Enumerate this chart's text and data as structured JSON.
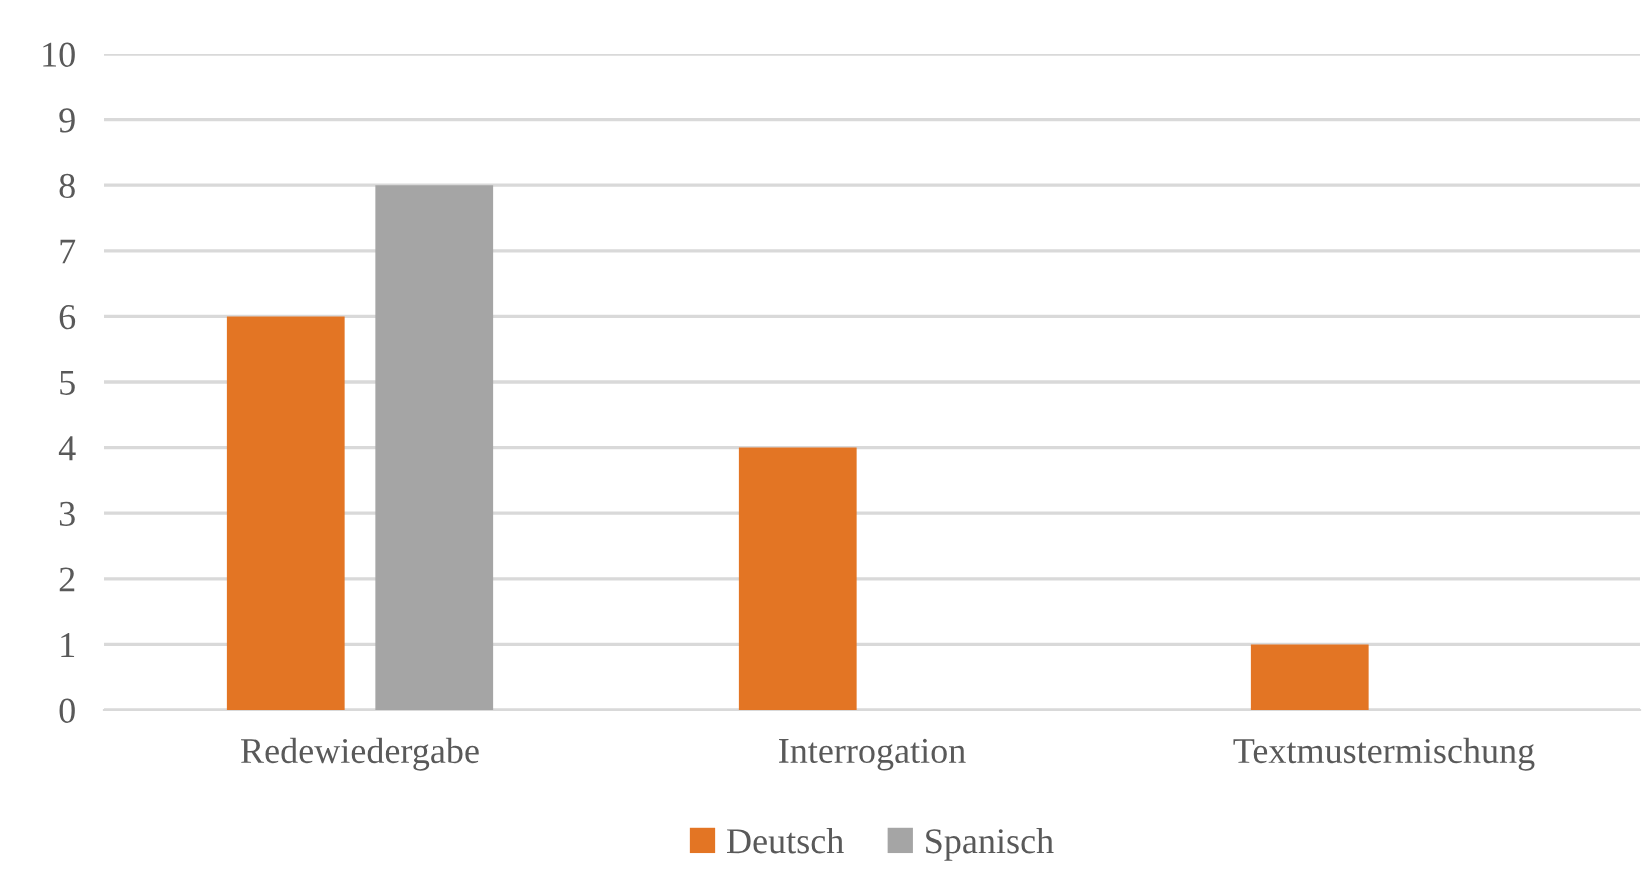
{
  "chart_data": {
    "type": "bar",
    "categories": [
      "Redewiedergabe",
      "Interrogation",
      "Textmustermischung"
    ],
    "series": [
      {
        "name": "Deutsch",
        "color": "#e37524",
        "values": [
          6,
          4,
          1
        ]
      },
      {
        "name": "Spanisch",
        "color": "#a5a5a5",
        "values": [
          8,
          0,
          0
        ]
      }
    ],
    "ylim": [
      0,
      10
    ],
    "yticks": [
      0,
      1,
      2,
      3,
      4,
      5,
      6,
      7,
      8,
      9,
      10
    ],
    "grid": "y",
    "legend": "bottom"
  }
}
